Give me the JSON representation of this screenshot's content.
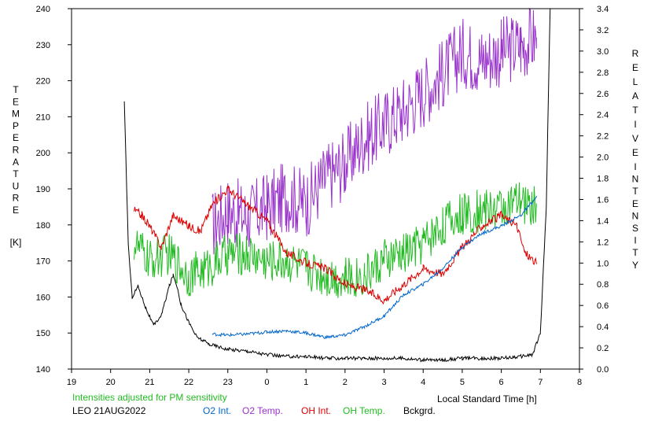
{
  "chart_data": {
    "type": "line",
    "title": "",
    "xlabel": "Local Standard Time [h]",
    "xlim": [
      19,
      32
    ],
    "x_tick_labels": [
      "19",
      "20",
      "21",
      "22",
      "23",
      "0",
      "1",
      "2",
      "3",
      "4",
      "5",
      "6",
      "7",
      "8"
    ],
    "y_left": {
      "label_letters": [
        "T",
        "E",
        "M",
        "P",
        "E",
        "R",
        "A",
        "T",
        "U",
        "R",
        "E"
      ],
      "unit": "[K]",
      "lim": [
        140,
        240
      ],
      "tick_labels": [
        "140",
        "150",
        "160",
        "170",
        "180",
        "190",
        "200",
        "210",
        "220",
        "230",
        "240"
      ]
    },
    "y_right": {
      "label_letters": [
        "R",
        "E",
        "L",
        "A",
        "T",
        "I",
        "V",
        "E"
      ],
      "label_letters_2": [
        "I",
        "N",
        "T",
        "E",
        "N",
        "S",
        "I",
        "T",
        "Y"
      ],
      "lim": [
        0.0,
        3.4
      ],
      "tick_labels": [
        "0.0",
        "0.2",
        "0.4",
        "0.6",
        "0.8",
        "1.0",
        "1.2",
        "1.4",
        "1.6",
        "1.8",
        "2.0",
        "2.2",
        "2.4",
        "2.6",
        "2.8",
        "3.0",
        "3.2",
        "3.4"
      ]
    },
    "grid": false,
    "note": "Intensities adjusted for PM sensitivity",
    "station_date": "LEO 21AUG2022",
    "legend": [
      {
        "name": "O2 Int.",
        "color": "#0066cc"
      },
      {
        "name": "O2 Temp.",
        "color": "#9933cc"
      },
      {
        "name": "OH Int.",
        "color": "#dd0000"
      },
      {
        "name": "OH Temp.",
        "color": "#22bb22"
      },
      {
        "name": "Bckgrd.",
        "color": "#000000"
      }
    ],
    "series": [
      {
        "name": "O2 Temp.",
        "axis": "left",
        "color": "#9933cc",
        "noise": 10,
        "x": [
          22.6,
          23.0,
          23.5,
          24.0,
          24.5,
          25.0,
          25.5,
          26.0,
          26.5,
          27.0,
          27.5,
          28.0,
          28.5,
          29.0,
          29.5,
          30.0,
          30.5,
          30.9
        ],
        "y": [
          180,
          184,
          182,
          185,
          188,
          186,
          193,
          197,
          204,
          208,
          212,
          217,
          222,
          228,
          226,
          228,
          230,
          232
        ]
      },
      {
        "name": "OH Temp.",
        "axis": "left",
        "color": "#22bb22",
        "noise": 6,
        "x": [
          20.6,
          21.0,
          21.5,
          22.0,
          22.5,
          23.0,
          23.5,
          24.0,
          24.5,
          25.0,
          25.5,
          26.0,
          26.5,
          27.0,
          27.5,
          28.0,
          28.5,
          29.0,
          29.5,
          30.0,
          30.5,
          30.9
        ],
        "y": [
          175,
          170,
          172,
          166,
          168,
          172,
          172,
          170,
          170,
          168,
          166,
          165,
          166,
          170,
          172,
          175,
          180,
          183,
          184,
          185,
          186,
          185
        ]
      },
      {
        "name": "OH Int.",
        "axis": "right",
        "color": "#dd0000",
        "noise": 0.04,
        "x": [
          20.6,
          20.8,
          21.0,
          21.3,
          21.6,
          22.0,
          22.3,
          22.6,
          23.0,
          23.5,
          24.0,
          24.5,
          25.0,
          25.5,
          26.0,
          26.5,
          27.0,
          27.5,
          28.0,
          28.5,
          29.0,
          29.5,
          30.0,
          30.4,
          30.6,
          30.9
        ],
        "y": [
          1.5,
          1.45,
          1.35,
          1.15,
          1.45,
          1.35,
          1.3,
          1.55,
          1.7,
          1.55,
          1.4,
          1.1,
          1.0,
          0.95,
          0.8,
          0.75,
          0.65,
          0.8,
          0.95,
          0.9,
          1.15,
          1.35,
          1.45,
          1.35,
          1.1,
          1.0
        ]
      },
      {
        "name": "O2 Int.",
        "axis": "right",
        "color": "#0066cc",
        "noise": 0.015,
        "x": [
          22.6,
          23.0,
          23.5,
          24.0,
          24.5,
          25.0,
          25.5,
          26.0,
          26.5,
          27.0,
          27.5,
          28.0,
          28.5,
          29.0,
          29.5,
          30.0,
          30.5,
          30.9
        ],
        "y": [
          0.33,
          0.32,
          0.33,
          0.35,
          0.36,
          0.34,
          0.3,
          0.32,
          0.4,
          0.5,
          0.7,
          0.8,
          0.95,
          1.15,
          1.28,
          1.35,
          1.45,
          1.62
        ]
      },
      {
        "name": "Bckgrd.",
        "axis": "left",
        "color": "#000000",
        "noise": 0.5,
        "x": [
          20.35,
          20.45,
          20.55,
          20.7,
          20.9,
          21.1,
          21.3,
          21.5,
          21.6,
          21.7,
          21.8,
          22.0,
          22.2,
          22.5,
          23.0,
          23.5,
          24.0,
          24.5,
          25.0,
          25.5,
          26.0,
          26.5,
          27.0,
          27.5,
          28.0,
          28.5,
          29.0,
          29.5,
          30.0,
          30.5,
          30.8,
          31.0,
          31.15,
          31.25
        ],
        "y": [
          214,
          175,
          160,
          163,
          157,
          152,
          155,
          163,
          166,
          163,
          158,
          153,
          149,
          147,
          145.5,
          145,
          144,
          143.5,
          143.5,
          143,
          143,
          143,
          143,
          143,
          142.5,
          142.5,
          143,
          143,
          143,
          143.5,
          144,
          150,
          185,
          240
        ]
      }
    ]
  }
}
